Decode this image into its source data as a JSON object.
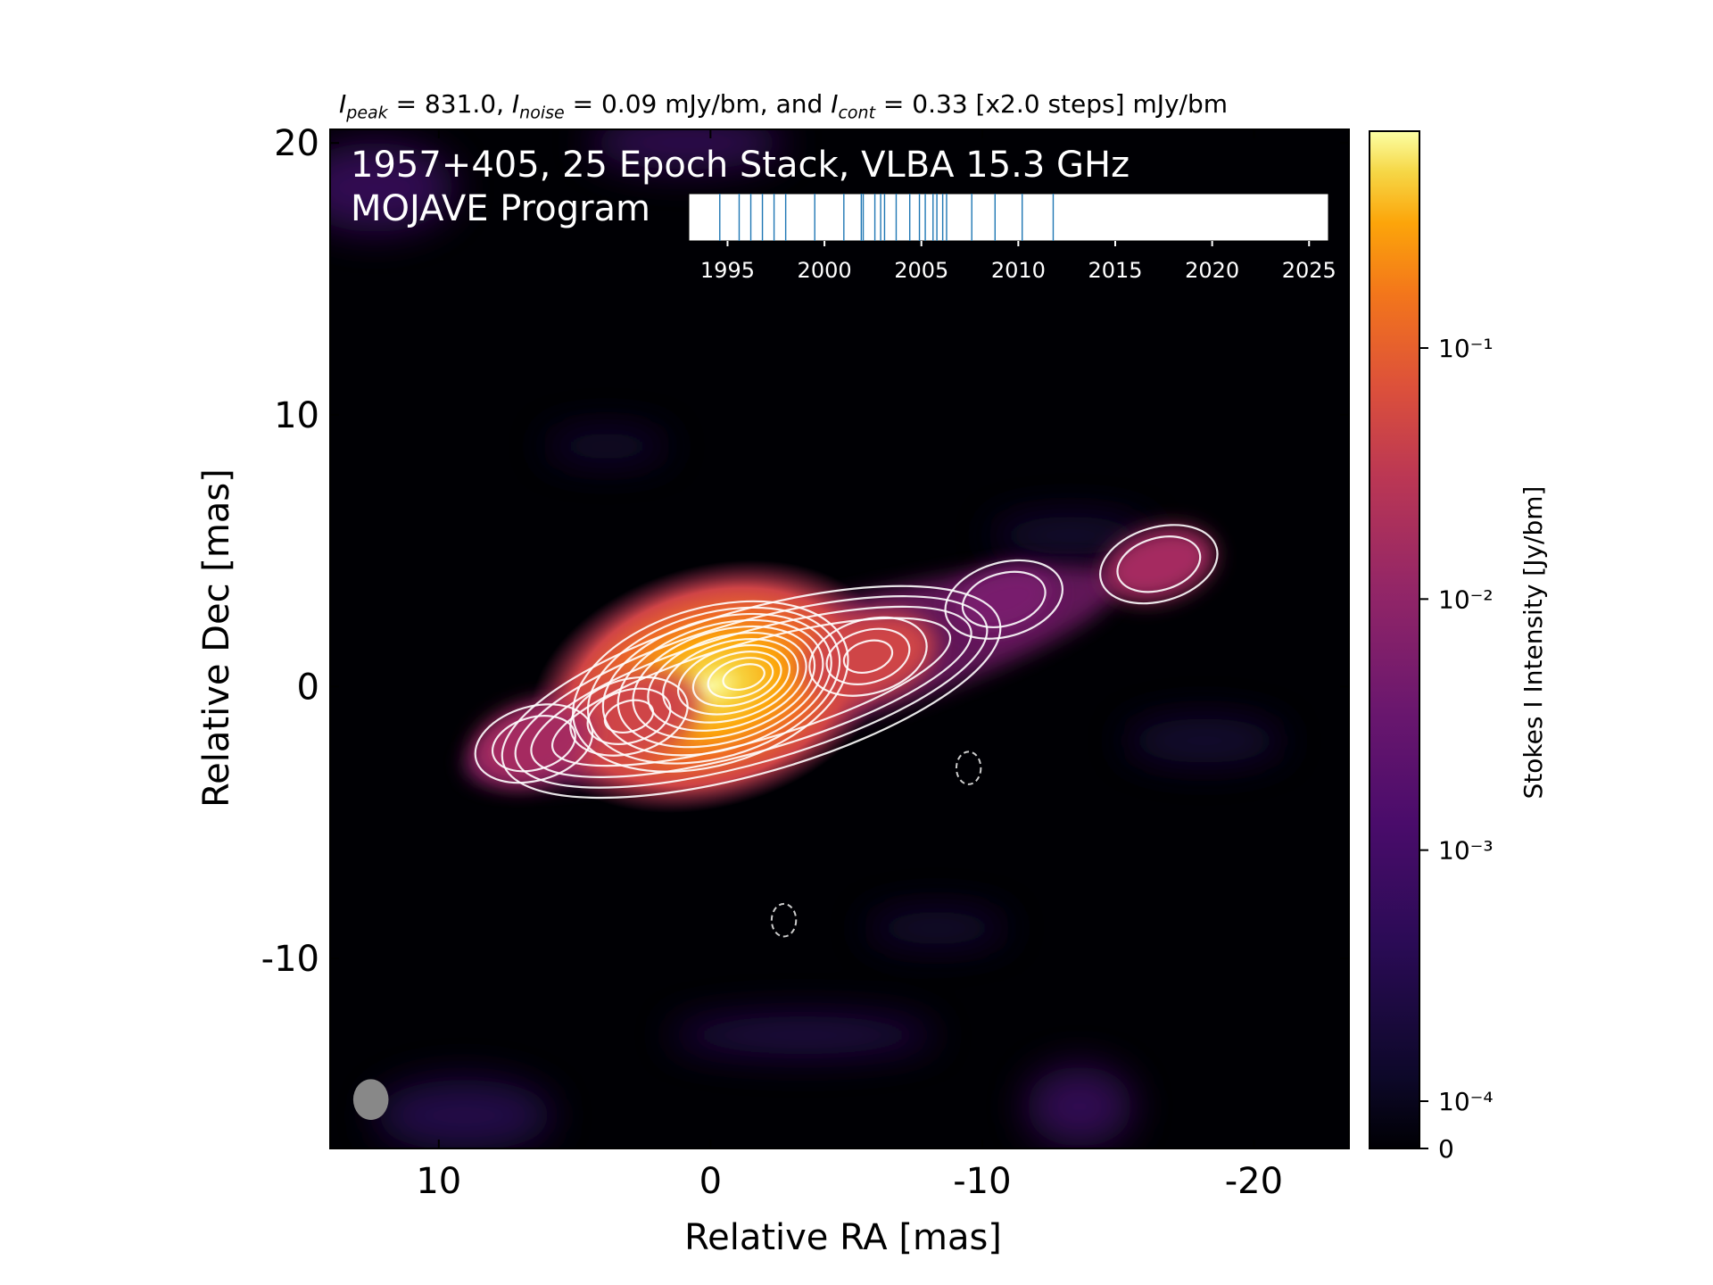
{
  "header": {
    "peak_sym": "I",
    "peak_sub": "peak",
    "peak_val": " = 831.0, ",
    "noise_sym": "I",
    "noise_sub": "noise",
    "noise_val": " = 0.09 mJy/bm, and ",
    "cont_sym": "I",
    "cont_sub": "cont",
    "cont_val": " = 0.33 [x2.0 steps] mJy/bm"
  },
  "chart_data": [
    {
      "type": "heatmap",
      "title_line1": "1957+405, 25 Epoch Stack, VLBA 15.3 GHz",
      "title_line2": "MOJAVE Program",
      "xlabel": "Relative RA [mas]",
      "ylabel": "Relative Dec [mas]",
      "xlim": [
        14,
        -23.5
      ],
      "ylim": [
        -17,
        20.5
      ],
      "xticks": [
        {
          "value": 10,
          "label": "10"
        },
        {
          "value": 0,
          "label": "0"
        },
        {
          "value": -10,
          "label": "-10"
        },
        {
          "value": -20,
          "label": "-20"
        }
      ],
      "yticks": [
        {
          "value": 20,
          "label": "20"
        },
        {
          "value": 10,
          "label": "10"
        },
        {
          "value": 0,
          "label": "0"
        },
        {
          "value": -10,
          "label": "-10"
        }
      ],
      "colormap": "inferno",
      "colormap_stops": [
        "#000004",
        "#1b0c41",
        "#4a0c6b",
        "#781c6d",
        "#a52c60",
        "#cf4446",
        "#ed6925",
        "#fb9b06",
        "#f7d13d",
        "#fcffa4"
      ],
      "contour_color": "#ffffff",
      "components": [
        {
          "ra": 0,
          "dec": 0,
          "peak": 0.83
        },
        {
          "ra": 3,
          "dec": -1.1,
          "peak": 0.02
        },
        {
          "ra": 6.5,
          "dec": -2.1,
          "peak": 0.006
        },
        {
          "ra": -5.8,
          "dec": 1.1,
          "peak": 0.012
        },
        {
          "ra": -10.8,
          "dec": 3.2,
          "peak": 0.0015
        },
        {
          "ra": -16.5,
          "dec": 4.5,
          "peak": 0.003
        }
      ],
      "negative_contours": [
        {
          "ra": -9.5,
          "dec": -3
        },
        {
          "ra": -2.7,
          "dec": -8.6
        }
      ],
      "beam": {
        "ra": 12.5,
        "dec": -15.2,
        "color": "#888888"
      }
    },
    {
      "type": "scatter",
      "name": "epoch-timeline",
      "xlim": [
        1993,
        2026
      ],
      "xticks": [
        "1995",
        "2000",
        "2005",
        "2010",
        "2015",
        "2020",
        "2025"
      ],
      "epochs": [
        1994.6,
        1995.6,
        1996.2,
        1996.8,
        1997.4,
        1998.0,
        1999.5,
        2001.0,
        2001.9,
        2002.0,
        2002.6,
        2002.9,
        2003.1,
        2003.7,
        2004.4,
        2004.9,
        2005.2,
        2005.6,
        2005.8,
        2006.1,
        2006.3,
        2007.6,
        2008.8,
        2010.2,
        2011.8
      ],
      "line_color": "#1f77b4"
    },
    {
      "type": "heatmap",
      "name": "colorbar",
      "ylabel": "Stokes I Intensity [Jy/bm]",
      "scale": "log",
      "range": [
        0,
        0.83
      ],
      "ticks": [
        {
          "value": 0.1,
          "label": "10⁻¹"
        },
        {
          "value": 0.01,
          "label": "10⁻²"
        },
        {
          "value": 0.001,
          "label": "10⁻³"
        },
        {
          "value": 0.0001,
          "label": "10⁻⁴"
        },
        {
          "value": 0,
          "label": "0"
        }
      ]
    }
  ]
}
